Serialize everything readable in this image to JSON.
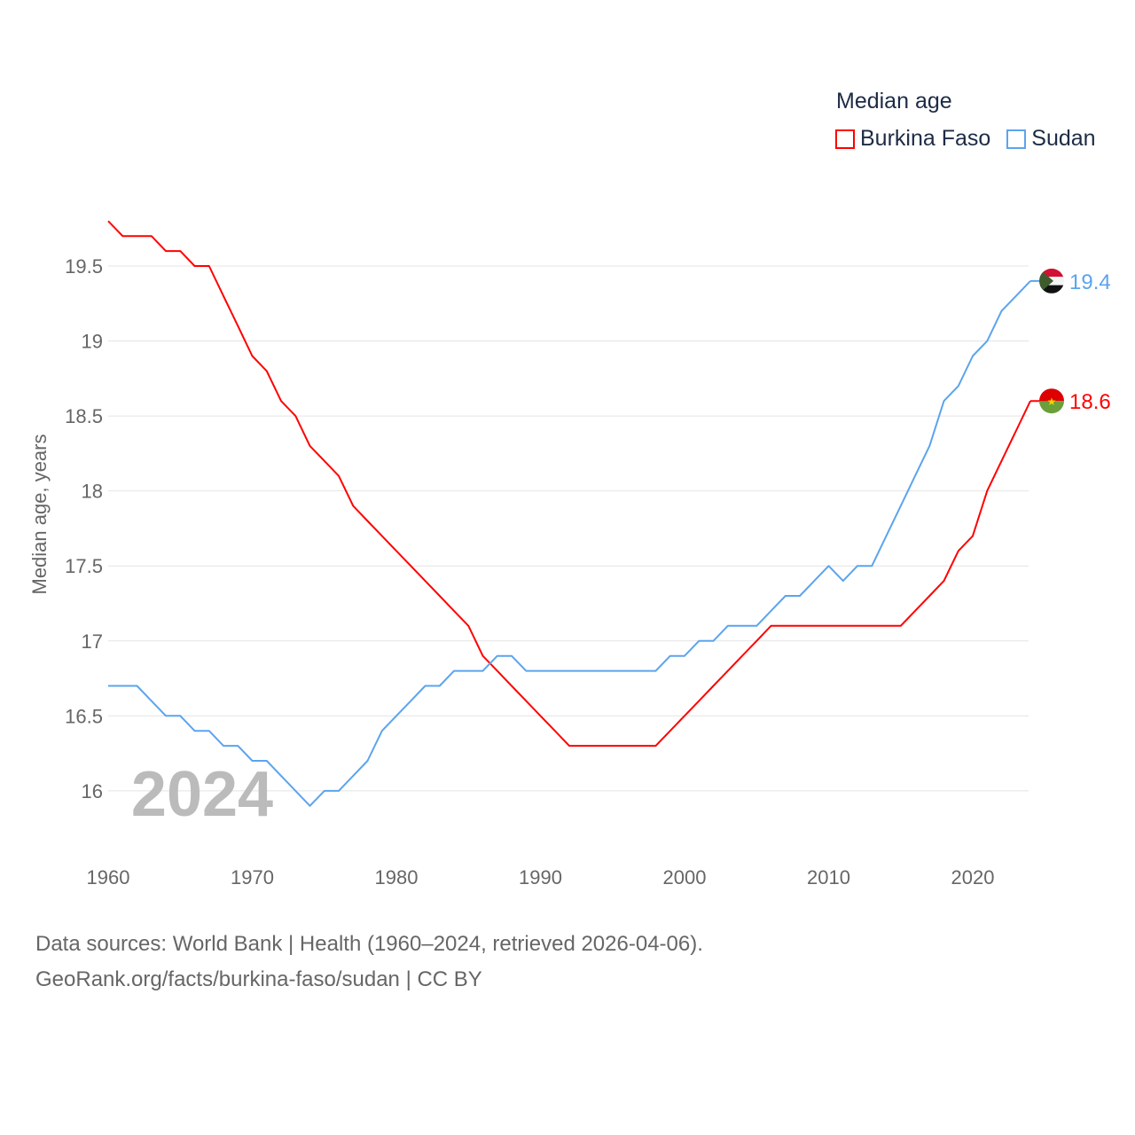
{
  "chart_data": {
    "type": "line",
    "title": "",
    "ylabel": "Median age, years",
    "xlabel": "",
    "ylim": [
      15.7,
      19.9
    ],
    "xlim": [
      1960,
      2024
    ],
    "yticks": [
      16,
      16.5,
      17,
      17.5,
      18,
      18.5,
      19,
      19.5
    ],
    "ytick_labels": [
      "16",
      "16.5",
      "17",
      "17.5",
      "18",
      "18.5",
      "19",
      "19.5"
    ],
    "xticks": [
      1960,
      1970,
      1980,
      1990,
      2000,
      2010,
      2020
    ],
    "xtick_labels": [
      "1960",
      "1970",
      "1980",
      "1990",
      "2000",
      "2010",
      "2020"
    ],
    "grid": true,
    "legend_title": "Median age",
    "legend_position": "top-right",
    "year_label": "2024",
    "series": [
      {
        "name": "Burkina Faso",
        "color": "#ff0000",
        "end_label": "18.6",
        "values": [
          19.8,
          19.7,
          19.7,
          19.7,
          19.6,
          19.6,
          19.5,
          19.5,
          19.3,
          19.1,
          18.9,
          18.8,
          18.6,
          18.5,
          18.3,
          18.2,
          18.1,
          17.9,
          17.8,
          17.7,
          17.6,
          17.5,
          17.4,
          17.3,
          17.2,
          17.1,
          16.9,
          16.8,
          16.7,
          16.6,
          16.5,
          16.4,
          16.3,
          16.3,
          16.3,
          16.3,
          16.3,
          16.3,
          16.3,
          16.4,
          16.5,
          16.6,
          16.7,
          16.8,
          16.9,
          17.0,
          17.1,
          17.1,
          17.1,
          17.1,
          17.1,
          17.1,
          17.1,
          17.1,
          17.1,
          17.1,
          17.2,
          17.3,
          17.4,
          17.6,
          17.7,
          18.0,
          18.2,
          18.4,
          18.6
        ]
      },
      {
        "name": "Sudan",
        "color": "#5ba4ee",
        "end_label": "19.4",
        "values": [
          16.7,
          16.7,
          16.7,
          16.6,
          16.5,
          16.5,
          16.4,
          16.4,
          16.3,
          16.3,
          16.2,
          16.2,
          16.1,
          16.0,
          15.9,
          16.0,
          16.0,
          16.1,
          16.2,
          16.4,
          16.5,
          16.6,
          16.7,
          16.7,
          16.8,
          16.8,
          16.8,
          16.9,
          16.9,
          16.8,
          16.8,
          16.8,
          16.8,
          16.8,
          16.8,
          16.8,
          16.8,
          16.8,
          16.8,
          16.9,
          16.9,
          17.0,
          17.0,
          17.1,
          17.1,
          17.1,
          17.2,
          17.3,
          17.3,
          17.4,
          17.5,
          17.4,
          17.5,
          17.5,
          17.7,
          17.9,
          18.1,
          18.3,
          18.6,
          18.7,
          18.9,
          19.0,
          19.2,
          19.3,
          19.4
        ]
      }
    ]
  },
  "source": {
    "line1": "Data sources: World Bank | Health (1960–2024, retrieved 2026-04-06).",
    "line2": "GeoRank.org/facts/burkina-faso/sudan | CC BY"
  }
}
